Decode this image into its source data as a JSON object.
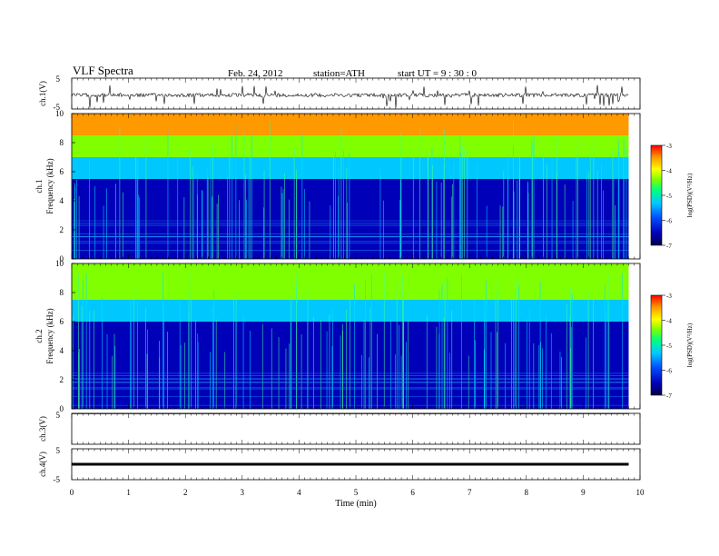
{
  "header": {
    "title": "VLF  Spectra",
    "date": "Feb. 24, 2012",
    "station": "station=ATH",
    "start": "start  UT  =   9  : 30 : 0"
  },
  "colors": {
    "spectrogram_scale": [
      "#00004a",
      "#0000b8",
      "#0050ff",
      "#00c8ff",
      "#00ff80",
      "#80ff00",
      "#ffff00",
      "#ff9900",
      "#ff0000"
    ],
    "trace": "#000000",
    "axis": "#000000"
  },
  "chart_data": [
    {
      "type": "line",
      "panel": "ch1-waveform",
      "ylabel": "ch.1(V)",
      "ylim": [
        -5,
        5
      ],
      "yticks": [
        "5",
        "-5"
      ],
      "xlim": [
        0,
        10
      ],
      "series": [
        {
          "x": [
            0,
            9.8
          ],
          "values": [
            -0.5,
            -0.5
          ]
        }
      ],
      "description": "noisy trace near zero with frequent negative spikes",
      "grid": false
    },
    {
      "type": "heatmap",
      "panel": "ch1-spectrogram",
      "ylabel": "ch.1",
      "ylabel2": "Frequency  (kHz)",
      "ylim": [
        0,
        10
      ],
      "yticks": [
        "0",
        "2",
        "4",
        "6",
        "8",
        "10"
      ],
      "xlim": [
        0,
        10
      ],
      "data_end_min": 9.8,
      "colorbar": {
        "label": "log(PSD)(V²/Hz)",
        "range": [
          -7,
          -3
        ],
        "ticks": [
          "-3",
          "-4",
          "-5",
          "-6",
          "-7"
        ]
      },
      "bands": [
        {
          "from_khz": 0,
          "to_khz": 5.5,
          "log_psd": -6.7
        },
        {
          "from_khz": 5.5,
          "to_khz": 7,
          "log_psd": -5.5
        },
        {
          "from_khz": 7,
          "to_khz": 8.5,
          "log_psd": -4.5
        },
        {
          "from_khz": 8.5,
          "to_khz": 10,
          "log_psd": -3.5
        }
      ]
    },
    {
      "type": "heatmap",
      "panel": "ch2-spectrogram",
      "ylabel": "ch.2",
      "ylabel2": "Frequency  (kHz)",
      "ylim": [
        0,
        10
      ],
      "yticks": [
        "0",
        "2",
        "4",
        "6",
        "8",
        "10"
      ],
      "xlim": [
        0,
        10
      ],
      "data_end_min": 9.8,
      "colorbar": {
        "label": "log(PSD)(V²/Hz)",
        "range": [
          -7,
          -3
        ],
        "ticks": [
          "-3",
          "-4",
          "-5",
          "-6",
          "-7"
        ]
      },
      "bands": [
        {
          "from_khz": 0,
          "to_khz": 6,
          "log_psd": -6.6
        },
        {
          "from_khz": 6,
          "to_khz": 7.5,
          "log_psd": -5.6
        },
        {
          "from_khz": 7.5,
          "to_khz": 10,
          "log_psd": -4.6
        }
      ]
    },
    {
      "type": "line",
      "panel": "ch3-waveform",
      "ylabel": "ch.3(V)",
      "ylim": [
        -5,
        5
      ],
      "yticks": [
        "5"
      ],
      "xlim": [
        0,
        10
      ],
      "series": [
        {
          "x": [
            0,
            9.8
          ],
          "values": [
            4.9,
            4.9
          ]
        }
      ],
      "grid": false
    },
    {
      "type": "line",
      "panel": "ch4-waveform",
      "ylabel": "ch.4(V)",
      "ylim": [
        -5,
        5
      ],
      "yticks": [
        "5",
        "-5"
      ],
      "xlim": [
        0,
        10
      ],
      "series": [
        {
          "x": [
            0,
            9.8
          ],
          "values": [
            0,
            0
          ]
        }
      ],
      "grid": false
    }
  ],
  "x_axis": {
    "label": "Time  (min)",
    "ticks": [
      "0",
      "1",
      "2",
      "3",
      "4",
      "5",
      "6",
      "7",
      "8",
      "9",
      "10"
    ]
  }
}
